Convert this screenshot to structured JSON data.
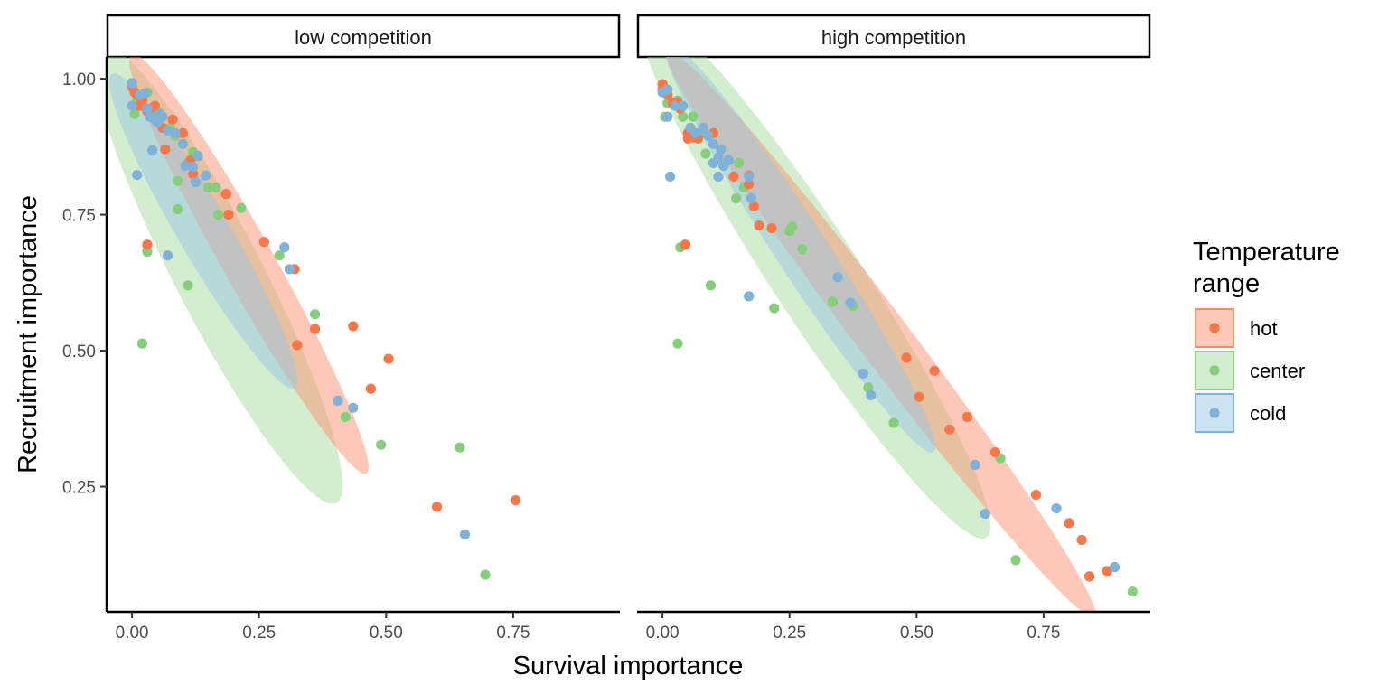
{
  "chart_data": {
    "type": "scatter",
    "xlabel": "Survival importance",
    "ylabel": "Recruitment importance",
    "xlim": [
      -0.05,
      0.96
    ],
    "ylim": [
      0.02,
      1.04
    ],
    "xticks": [
      0,
      0.25,
      0.5,
      0.75
    ],
    "xtick_labels": [
      "0.00",
      "0.25",
      "0.50",
      "0.75"
    ],
    "yticks": [
      0.25,
      0.5,
      0.75,
      1.0
    ],
    "ytick_labels": [
      "0.25",
      "0.50",
      "0.75",
      "1.00"
    ],
    "grid": false,
    "legend": {
      "title_lines": [
        "Temperature",
        "range"
      ],
      "position": "right",
      "entries": [
        {
          "label": "hot",
          "color": "#FC8D62"
        },
        {
          "label": "center",
          "color": "#8FD17F"
        },
        {
          "label": "cold",
          "color": "#80B1D9"
        }
      ]
    },
    "colors": {
      "hot": "#F8774A",
      "center": "#86CD7C",
      "cold": "#7FB1D9"
    },
    "ellipse_fills": {
      "hot": "#FC9272",
      "center": "#A8DDA0",
      "cold": "#9AC6E4"
    },
    "panels": [
      {
        "strip": "low competition",
        "ellipses": [
          {
            "series": "center",
            "cx": 0.17,
            "cy": 0.64,
            "major_half": 0.48,
            "minor_half": 0.085,
            "angle_deg": 61
          },
          {
            "series": "hot",
            "cx": 0.23,
            "cy": 0.66,
            "major_half": 0.45,
            "minor_half": 0.05,
            "angle_deg": 59
          },
          {
            "series": "cold",
            "cx": 0.14,
            "cy": 0.72,
            "major_half": 0.34,
            "minor_half": 0.05,
            "angle_deg": 58
          }
        ],
        "series": [
          {
            "name": "hot",
            "points": [
              [
                0.0,
                0.985
              ],
              [
                0.005,
                0.975
              ],
              [
                0.01,
                0.97
              ],
              [
                0.015,
                0.95
              ],
              [
                0.02,
                0.96
              ],
              [
                0.03,
                0.94
              ],
              [
                0.035,
                0.945
              ],
              [
                0.045,
                0.95
              ],
              [
                0.06,
                0.91
              ],
              [
                0.065,
                0.87
              ],
              [
                0.08,
                0.925
              ],
              [
                0.1,
                0.9
              ],
              [
                0.115,
                0.85
              ],
              [
                0.12,
                0.825
              ],
              [
                0.185,
                0.788
              ],
              [
                0.19,
                0.75
              ],
              [
                0.26,
                0.7
              ],
              [
                0.32,
                0.65
              ],
              [
                0.325,
                0.51
              ],
              [
                0.36,
                0.54
              ],
              [
                0.435,
                0.545
              ],
              [
                0.47,
                0.43
              ],
              [
                0.505,
                0.485
              ],
              [
                0.6,
                0.213
              ],
              [
                0.755,
                0.225
              ],
              [
                0.03,
                0.695
              ]
            ]
          },
          {
            "name": "center",
            "points": [
              [
                0.005,
                0.935
              ],
              [
                0.01,
                0.96
              ],
              [
                0.02,
                0.95
              ],
              [
                0.03,
                0.975
              ],
              [
                0.05,
                0.94
              ],
              [
                0.075,
                0.91
              ],
              [
                0.085,
                0.895
              ],
              [
                0.09,
                0.812
              ],
              [
                0.09,
                0.76
              ],
              [
                0.11,
                0.845
              ],
              [
                0.12,
                0.865
              ],
              [
                0.15,
                0.8
              ],
              [
                0.165,
                0.8
              ],
              [
                0.17,
                0.75
              ],
              [
                0.215,
                0.762
              ],
              [
                0.29,
                0.675
              ],
              [
                0.36,
                0.567
              ],
              [
                0.42,
                0.378
              ],
              [
                0.49,
                0.327
              ],
              [
                0.645,
                0.322
              ],
              [
                0.695,
                0.088
              ],
              [
                0.11,
                0.62
              ],
              [
                0.03,
                0.682
              ],
              [
                0.02,
                0.513
              ]
            ]
          },
          {
            "name": "cold",
            "points": [
              [
                0.0,
                0.992
              ],
              [
                0.0,
                0.95
              ],
              [
                0.015,
                0.97
              ],
              [
                0.025,
                0.973
              ],
              [
                0.03,
                0.945
              ],
              [
                0.035,
                0.93
              ],
              [
                0.04,
                0.868
              ],
              [
                0.045,
                0.925
              ],
              [
                0.05,
                0.92
              ],
              [
                0.055,
                0.935
              ],
              [
                0.06,
                0.93
              ],
              [
                0.07,
                0.905
              ],
              [
                0.085,
                0.9
              ],
              [
                0.1,
                0.88
              ],
              [
                0.105,
                0.84
              ],
              [
                0.12,
                0.838
              ],
              [
                0.125,
                0.81
              ],
              [
                0.13,
                0.858
              ],
              [
                0.145,
                0.822
              ],
              [
                0.01,
                0.823
              ],
              [
                0.07,
                0.675
              ],
              [
                0.3,
                0.69
              ],
              [
                0.31,
                0.65
              ],
              [
                0.405,
                0.408
              ],
              [
                0.435,
                0.395
              ],
              [
                0.655,
                0.162
              ]
            ]
          }
        ]
      },
      {
        "strip": "high competition",
        "ellipses": [
          {
            "series": "center",
            "cx": 0.3,
            "cy": 0.64,
            "major_half": 0.59,
            "minor_half": 0.085,
            "angle_deg": 55
          },
          {
            "series": "hot",
            "cx": 0.43,
            "cy": 0.53,
            "major_half": 0.67,
            "minor_half": 0.05,
            "angle_deg": 51
          },
          {
            "series": "cold",
            "cx": 0.27,
            "cy": 0.69,
            "major_half": 0.46,
            "minor_half": 0.05,
            "angle_deg": 55
          }
        ],
        "series": [
          {
            "name": "hot",
            "points": [
              [
                0.0,
                0.99
              ],
              [
                0.0,
                0.98
              ],
              [
                0.01,
                0.97
              ],
              [
                0.02,
                0.955
              ],
              [
                0.03,
                0.955
              ],
              [
                0.035,
                0.945
              ],
              [
                0.05,
                0.9
              ],
              [
                0.05,
                0.89
              ],
              [
                0.06,
                0.892
              ],
              [
                0.07,
                0.89
              ],
              [
                0.1,
                0.9
              ],
              [
                0.13,
                0.85
              ],
              [
                0.14,
                0.82
              ],
              [
                0.17,
                0.822
              ],
              [
                0.17,
                0.806
              ],
              [
                0.18,
                0.765
              ],
              [
                0.19,
                0.73
              ],
              [
                0.215,
                0.725
              ],
              [
                0.045,
                0.695
              ],
              [
                0.48,
                0.487
              ],
              [
                0.505,
                0.415
              ],
              [
                0.535,
                0.463
              ],
              [
                0.565,
                0.355
              ],
              [
                0.6,
                0.378
              ],
              [
                0.655,
                0.313
              ],
              [
                0.735,
                0.235
              ],
              [
                0.8,
                0.183
              ],
              [
                0.825,
                0.152
              ],
              [
                0.84,
                0.085
              ],
              [
                0.875,
                0.095
              ]
            ]
          },
          {
            "name": "center",
            "points": [
              [
                0.005,
                0.93
              ],
              [
                0.01,
                0.955
              ],
              [
                0.02,
                0.955
              ],
              [
                0.03,
                0.96
              ],
              [
                0.04,
                0.93
              ],
              [
                0.06,
                0.93
              ],
              [
                0.08,
                0.9
              ],
              [
                0.085,
                0.862
              ],
              [
                0.145,
                0.78
              ],
              [
                0.15,
                0.845
              ],
              [
                0.16,
                0.8
              ],
              [
                0.25,
                0.72
              ],
              [
                0.255,
                0.728
              ],
              [
                0.275,
                0.687
              ],
              [
                0.22,
                0.578
              ],
              [
                0.335,
                0.59
              ],
              [
                0.375,
                0.582
              ],
              [
                0.405,
                0.432
              ],
              [
                0.455,
                0.367
              ],
              [
                0.665,
                0.302
              ],
              [
                0.695,
                0.115
              ],
              [
                0.925,
                0.057
              ],
              [
                0.095,
                0.62
              ],
              [
                0.035,
                0.69
              ],
              [
                0.03,
                0.513
              ]
            ]
          },
          {
            "name": "cold",
            "points": [
              [
                0.0,
                0.975
              ],
              [
                0.01,
                0.93
              ],
              [
                0.01,
                0.98
              ],
              [
                0.025,
                0.95
              ],
              [
                0.04,
                0.95
              ],
              [
                0.055,
                0.91
              ],
              [
                0.065,
                0.9
              ],
              [
                0.08,
                0.91
              ],
              [
                0.09,
                0.895
              ],
              [
                0.1,
                0.88
              ],
              [
                0.1,
                0.845
              ],
              [
                0.11,
                0.855
              ],
              [
                0.115,
                0.87
              ],
              [
                0.12,
                0.84
              ],
              [
                0.13,
                0.85
              ],
              [
                0.11,
                0.82
              ],
              [
                0.17,
                0.82
              ],
              [
                0.175,
                0.78
              ],
              [
                0.015,
                0.82
              ],
              [
                0.17,
                0.6
              ],
              [
                0.345,
                0.635
              ],
              [
                0.37,
                0.588
              ],
              [
                0.395,
                0.458
              ],
              [
                0.41,
                0.418
              ],
              [
                0.615,
                0.29
              ],
              [
                0.635,
                0.2
              ],
              [
                0.775,
                0.21
              ],
              [
                0.89,
                0.102
              ]
            ]
          }
        ]
      }
    ]
  }
}
